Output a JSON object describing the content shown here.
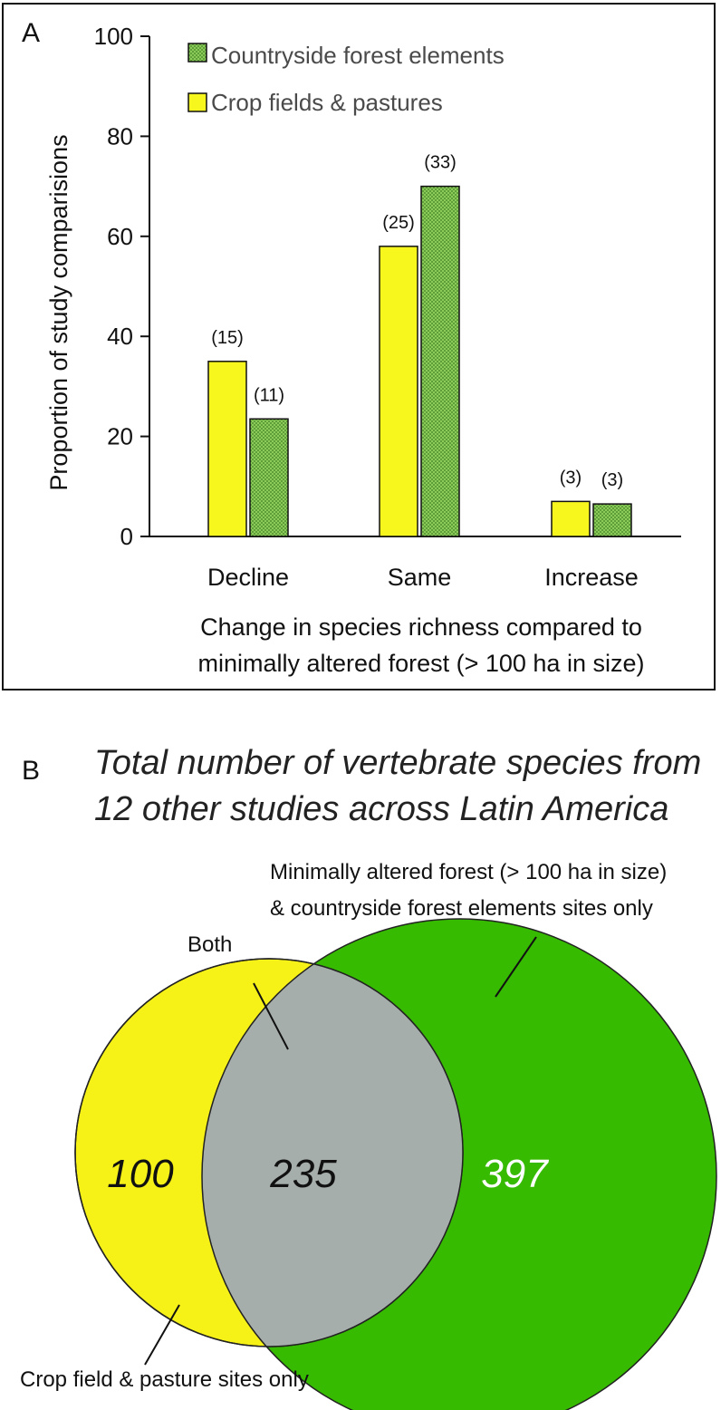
{
  "chart_data": [
    {
      "type": "bar",
      "panel_label": "A",
      "categories": [
        "Decline",
        "Same",
        "Increase"
      ],
      "series": [
        {
          "name": "Crop fields & pastures",
          "values": [
            35,
            58,
            7
          ],
          "labels": [
            "(15)",
            "(25)",
            "(3)"
          ]
        },
        {
          "name": "Countryside forest elements",
          "values": [
            23.5,
            70,
            6.5
          ],
          "labels": [
            "(11)",
            "(33)",
            "(3)"
          ]
        }
      ],
      "legend_order": [
        "Countryside forest elements",
        "Crop fields & pastures"
      ],
      "yticks": [
        "0",
        "20",
        "40",
        "60",
        "80",
        "100"
      ],
      "ylim": [
        0,
        100
      ],
      "ylabel": "Proportion of study comparisions",
      "xlabel_line1": "Change in species richness compared to",
      "xlabel_line2": "minimally altered forest (> 100 ha in size)",
      "legend_position": "top-left",
      "grid": false
    },
    {
      "type": "venn",
      "panel_label": "B",
      "title_line1": "Total number of vertebrate species from",
      "title_line2": "12 other studies across Latin America",
      "sets": [
        {
          "name": "crop",
          "label": "Crop field & pasture sites only",
          "value": "100",
          "color": "#f6f116"
        },
        {
          "name": "both",
          "label": "Both",
          "value": "235",
          "color": "#a6aeab"
        },
        {
          "name": "forest",
          "label_line1": "Minimally altered forest (> 100 ha in size)",
          "label_line2": "& countryside forest elements sites only",
          "value": "397",
          "color": "#36bb00"
        }
      ]
    }
  ],
  "colors": {
    "crop_bar": "#f7f71e",
    "forest_bar": "#8ccb5a",
    "forest_bar_dot": "#5f9f3a",
    "venn_yellow": "#f6f116",
    "venn_green": "#36bb00",
    "venn_gray": "#a6aeab"
  }
}
